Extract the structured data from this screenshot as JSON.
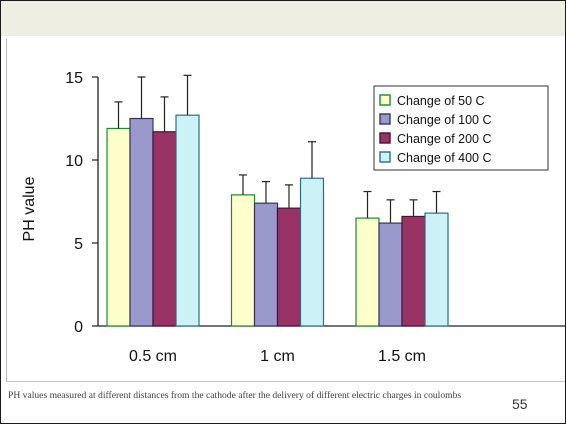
{
  "slide": {
    "caption": "PH values measured at different distances from the cathode after the delivery of different electric charges in coulombs",
    "page_number": "55"
  },
  "colors": {
    "header_band": "#eeeee2",
    "bar_outline": "#222222",
    "error_bar": "#222222"
  },
  "chart_data": {
    "type": "bar",
    "title": "",
    "xlabel": "",
    "ylabel": "PH value",
    "ylim": [
      0,
      15
    ],
    "yticks": [
      "0",
      "5",
      "10",
      "15"
    ],
    "grid": false,
    "legend_position": "top-right",
    "categories": [
      "0.5 cm",
      "1 cm",
      "1.5 cm"
    ],
    "series": [
      {
        "name": "Change of 50 C",
        "color": "#ffffcc",
        "edge": "#1a8a2a",
        "values": [
          11.9,
          7.9,
          6.5
        ],
        "errors": [
          1.6,
          1.2,
          1.6
        ]
      },
      {
        "name": "Change of 100 C",
        "color": "#9999cc",
        "edge": "#333366",
        "values": [
          12.5,
          7.4,
          6.2
        ],
        "errors": [
          2.5,
          1.3,
          1.4
        ]
      },
      {
        "name": "Change of 200 C",
        "color": "#993366",
        "edge": "#4a1030",
        "values": [
          11.7,
          7.1,
          6.6
        ],
        "errors": [
          2.1,
          1.4,
          1.0
        ]
      },
      {
        "name": "Change of 400 C",
        "color": "#ccf2f8",
        "edge": "#2b6f80",
        "values": [
          12.7,
          8.9,
          6.8
        ],
        "errors": [
          2.4,
          2.2,
          1.3
        ]
      }
    ]
  }
}
